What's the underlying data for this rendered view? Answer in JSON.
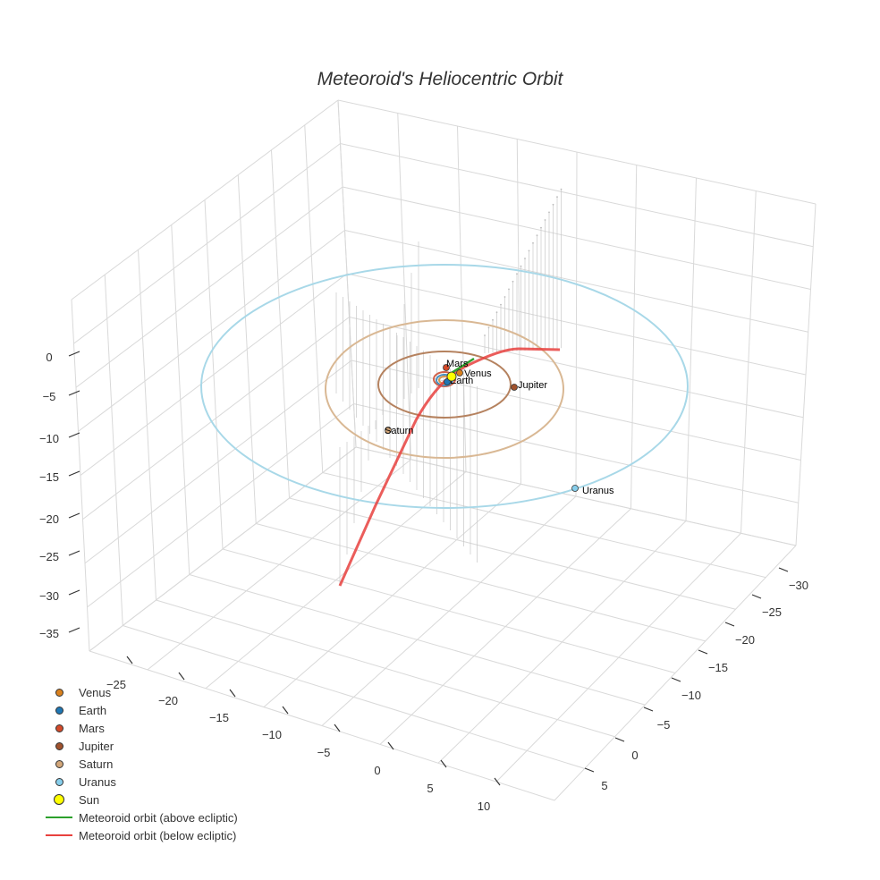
{
  "chart_data": {
    "type": "scatter3d",
    "title": "Meteoroid's Heliocentric Orbit",
    "x_ticks": [
      "−25",
      "−20",
      "−15",
      "−10",
      "−5",
      "0",
      "5",
      "10"
    ],
    "y_ticks": [
      "−30",
      "−25",
      "−20",
      "−15",
      "−10",
      "−5",
      "0",
      "5"
    ],
    "z_ticks": [
      "0",
      "−5",
      "−10",
      "−15",
      "−20",
      "−25",
      "−30",
      "−35"
    ],
    "x_range": [
      -28,
      12
    ],
    "y_range": [
      -32,
      8
    ],
    "z_range": [
      -37,
      2
    ],
    "planets": [
      {
        "name": "Venus",
        "color": "#d9811e",
        "orbit_radius_au": 0.72,
        "label": "Venus"
      },
      {
        "name": "Earth",
        "color": "#1f77b4",
        "orbit_radius_au": 1.0,
        "label": "Earth"
      },
      {
        "name": "Mars",
        "color": "#d44a2a",
        "orbit_radius_au": 1.52,
        "label": "Mars"
      },
      {
        "name": "Jupiter",
        "color": "#a0522d",
        "orbit_radius_au": 5.2,
        "label": "Jupiter"
      },
      {
        "name": "Saturn",
        "color": "#d2a679",
        "orbit_radius_au": 9.5,
        "label": "Saturn"
      },
      {
        "name": "Uranus",
        "color": "#87ceeb",
        "orbit_radius_au": 19.2,
        "label": "Uranus"
      }
    ],
    "sun": {
      "name": "Sun",
      "color": "#ffff00"
    },
    "meteoroid_above": {
      "name": "Meteoroid orbit (above ecliptic)",
      "color": "#2ca02c"
    },
    "meteoroid_below": {
      "name": "Meteoroid orbit (below ecliptic)",
      "color": "#e8413e"
    },
    "legend": [
      {
        "label": "Venus",
        "kind": "marker",
        "color": "#d9811e"
      },
      {
        "label": "Earth",
        "kind": "marker",
        "color": "#1f77b4"
      },
      {
        "label": "Mars",
        "kind": "marker",
        "color": "#d44a2a"
      },
      {
        "label": "Jupiter",
        "kind": "marker",
        "color": "#a0522d"
      },
      {
        "label": "Saturn",
        "kind": "marker",
        "color": "#d2a679"
      },
      {
        "label": "Uranus",
        "kind": "marker",
        "color": "#87ceeb"
      },
      {
        "label": "Sun",
        "kind": "sun",
        "color": "#ffff00"
      },
      {
        "label": "Meteoroid orbit (above ecliptic)",
        "kind": "line",
        "color": "#2ca02c"
      },
      {
        "label": "Meteoroid orbit (below ecliptic)",
        "kind": "line",
        "color": "#e8413e"
      }
    ]
  }
}
